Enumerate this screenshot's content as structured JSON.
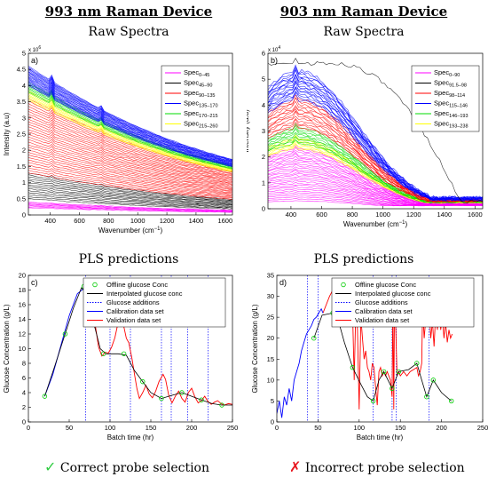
{
  "headers": {
    "left_device": "993 nm Raman Device",
    "right_device": "903 nm Raman Device",
    "raw_spectra": "Raw Spectra",
    "pls_predictions": "PLS predictions"
  },
  "footers": {
    "left": "Correct probe selection",
    "right": "Incorrect probe selection",
    "left_mark": "✓",
    "right_mark": "✗",
    "left_mark_color": "#2ecc40",
    "right_mark_color": "#e8161e"
  },
  "chart_data": [
    {
      "id": "a",
      "type": "line",
      "panel_label": "a)",
      "xlabel": "Wavenumber (cm",
      "xlabel_sup": "−1",
      "xlabel_end": ")",
      "ylabel": "Intensity (a.u)",
      "exponent_base": "x 10",
      "exponent_power": "6",
      "xlim": [
        250,
        1650
      ],
      "ylim": [
        0,
        5
      ],
      "xticks": [
        "400",
        "600",
        "800",
        "1000",
        "1200",
        "1400",
        "1600"
      ],
      "yticks": [
        "0",
        "0.5",
        "1",
        "1.5",
        "2",
        "2.5",
        "3",
        "3.5",
        "4",
        "4.5",
        "5"
      ],
      "legend": [
        {
          "base": "Spec",
          "sub": "0–45",
          "color": "#ff00ff"
        },
        {
          "base": "Spec",
          "sub": "45–90",
          "color": "#000000"
        },
        {
          "base": "Spec",
          "sub": "90–135",
          "color": "#ff0000"
        },
        {
          "base": "Spec",
          "sub": "135–170",
          "color": "#0000ff"
        },
        {
          "base": "Spec",
          "sub": "170–215",
          "color": "#00dd00"
        },
        {
          "base": "Spec",
          "sub": "215–260",
          "color": "#ffff00"
        }
      ],
      "series": [
        {
          "color": "#ff00ff",
          "count": 8,
          "start_min": 0.22,
          "start_max": 0.4
        },
        {
          "color": "#000000",
          "count": 14,
          "start_min": 0.5,
          "start_max": 1.3
        },
        {
          "color": "#ff0000",
          "count": 30,
          "start_min": 1.3,
          "start_max": 3.6
        },
        {
          "color": "#ffff00",
          "count": 8,
          "start_min": 3.55,
          "start_max": 3.85
        },
        {
          "color": "#00dd00",
          "count": 8,
          "start_min": 3.8,
          "start_max": 4.1
        },
        {
          "color": "#0000ff",
          "count": 20,
          "start_min": 4.0,
          "start_max": 4.6
        }
      ]
    },
    {
      "id": "b",
      "type": "line",
      "panel_label": "b)",
      "xlabel": "Wavenumber (cm",
      "xlabel_sup": "−1",
      "xlabel_end": ")",
      "ylabel": "Intensity (a.u)",
      "exponent_base": "x 10",
      "exponent_power": "4",
      "xlim": [
        250,
        1650
      ],
      "ylim": [
        0,
        6
      ],
      "xticks": [
        "400",
        "600",
        "800",
        "1000",
        "1200",
        "1400",
        "1600"
      ],
      "yticks": [
        "0",
        "1",
        "2",
        "3",
        "4",
        "5",
        "6"
      ],
      "legend": [
        {
          "base": "Spec",
          "sub": "0–90",
          "color": "#ff00ff"
        },
        {
          "base": "Spec",
          "sub": "91.5–98",
          "color": "#000000"
        },
        {
          "base": "Spec",
          "sub": "98–114",
          "color": "#ff0000"
        },
        {
          "base": "Spec",
          "sub": "115–146",
          "color": "#0000ff"
        },
        {
          "base": "Spec",
          "sub": "146–193",
          "color": "#00dd00"
        },
        {
          "base": "Spec",
          "sub": "193–238",
          "color": "#ffff00"
        }
      ],
      "series": [
        {
          "color": "#ff00ff",
          "count": 28,
          "peak_min": 0.3,
          "peak_max": 2.3
        },
        {
          "color": "#ffff00",
          "count": 8,
          "peak_min": 2.3,
          "peak_max": 2.7
        },
        {
          "color": "#00dd00",
          "count": 10,
          "peak_min": 2.5,
          "peak_max": 3.1
        },
        {
          "color": "#ff0000",
          "count": 14,
          "peak_min": 3.1,
          "peak_max": 4.2
        },
        {
          "color": "#0000ff",
          "count": 18,
          "peak_min": 4.2,
          "peak_max": 5.3
        },
        {
          "color": "#000000",
          "count": 1,
          "peak_min": 5.6,
          "peak_max": 5.6
        }
      ]
    },
    {
      "id": "c",
      "type": "line",
      "panel_label": "c)",
      "xlabel": "Batch time (hr)",
      "ylabel": "Glucose Concentration (g/L)",
      "xlim": [
        0,
        250
      ],
      "ylim": [
        0,
        20
      ],
      "xticks": [
        "0",
        "50",
        "100",
        "150",
        "200",
        "250"
      ],
      "yticks": [
        "0",
        "2",
        "4",
        "6",
        "8",
        "10",
        "12",
        "14",
        "16",
        "18",
        "20"
      ],
      "legend": [
        {
          "label": "Offline glucose Conc",
          "color": "#00cc00",
          "kind": "circle"
        },
        {
          "label": "Interpolated glucose conc",
          "color": "#000000",
          "kind": "line"
        },
        {
          "label": "Glucose additions",
          "color": "#0000ff",
          "kind": "dotted"
        },
        {
          "label": "Calibration data set",
          "color": "#0000ff",
          "kind": "line"
        },
        {
          "label": "Validation data set",
          "color": "#ff0000",
          "kind": "line"
        }
      ],
      "offline": [
        [
          20,
          3.5
        ],
        [
          45,
          12
        ],
        [
          68,
          18.5
        ],
        [
          92,
          9.3
        ],
        [
          117,
          9.3
        ],
        [
          140,
          5.5
        ],
        [
          163,
          3.2
        ],
        [
          188,
          4.0
        ],
        [
          212,
          3.0
        ],
        [
          237,
          2.3
        ]
      ],
      "interpolated": [
        [
          20,
          3.5
        ],
        [
          32,
          7.5
        ],
        [
          45,
          12
        ],
        [
          55,
          15.5
        ],
        [
          65,
          18.3
        ],
        [
          72,
          17.5
        ],
        [
          80,
          13.5
        ],
        [
          88,
          10.0
        ],
        [
          95,
          9.3
        ],
        [
          110,
          9.3
        ],
        [
          120,
          9.1
        ],
        [
          130,
          7.0
        ],
        [
          140,
          5.5
        ],
        [
          150,
          4.0
        ],
        [
          163,
          3.2
        ],
        [
          175,
          3.6
        ],
        [
          188,
          4.0
        ],
        [
          200,
          3.5
        ],
        [
          212,
          3.0
        ],
        [
          225,
          2.5
        ],
        [
          237,
          2.3
        ],
        [
          250,
          2.3
        ]
      ],
      "calibration": [
        [
          20,
          3.5
        ],
        [
          30,
          6.5
        ],
        [
          40,
          10.5
        ],
        [
          50,
          14.5
        ],
        [
          60,
          17.5
        ],
        [
          70,
          18.4
        ]
      ],
      "validation": [
        [
          70,
          18.4
        ],
        [
          74,
          17.8
        ],
        [
          78,
          16.2
        ],
        [
          82,
          13.2
        ],
        [
          86,
          10.2
        ],
        [
          90,
          9.0
        ],
        [
          94,
          9.5
        ],
        [
          98,
          9.4
        ],
        [
          102,
          10.2
        ],
        [
          106,
          11.5
        ],
        [
          110,
          13.6
        ],
        [
          113,
          14.6
        ],
        [
          117,
          13.0
        ],
        [
          120,
          11.4
        ],
        [
          123,
          10.8
        ],
        [
          127,
          8.6
        ],
        [
          130,
          6.5
        ],
        [
          133,
          4.5
        ],
        [
          136,
          3.2
        ],
        [
          140,
          4.0
        ],
        [
          144,
          5.0
        ],
        [
          148,
          3.8
        ],
        [
          152,
          3.3
        ],
        [
          156,
          4.2
        ],
        [
          160,
          5.5
        ],
        [
          165,
          6.5
        ],
        [
          168,
          5.8
        ],
        [
          172,
          3.6
        ],
        [
          176,
          2.6
        ],
        [
          180,
          3.5
        ],
        [
          184,
          4.2
        ],
        [
          188,
          3.2
        ],
        [
          192,
          2.7
        ],
        [
          196,
          4.0
        ],
        [
          200,
          4.6
        ],
        [
          204,
          3.4
        ],
        [
          208,
          2.6
        ],
        [
          212,
          2.9
        ],
        [
          216,
          3.5
        ],
        [
          220,
          2.8
        ],
        [
          224,
          2.4
        ],
        [
          228,
          2.7
        ],
        [
          232,
          2.9
        ],
        [
          236,
          2.5
        ],
        [
          240,
          2.3
        ],
        [
          245,
          2.5
        ],
        [
          250,
          2.4
        ]
      ],
      "additions": [
        70,
        100,
        125,
        163,
        175,
        195,
        220
      ]
    },
    {
      "id": "d",
      "type": "line",
      "panel_label": "d)",
      "xlabel": "Batch time (hr)",
      "ylabel": "Glucose Concentration (g/L)",
      "xlim": [
        0,
        250
      ],
      "ylim": [
        0,
        35
      ],
      "xticks": [
        "0",
        "50",
        "100",
        "150",
        "200",
        "250"
      ],
      "yticks": [
        "0",
        "5",
        "10",
        "15",
        "20",
        "25",
        "30",
        "35"
      ],
      "legend": [
        {
          "label": "Offline glucose Conc",
          "color": "#00cc00",
          "kind": "circle"
        },
        {
          "label": "Interpolated glucose conc",
          "color": "#000000",
          "kind": "line"
        },
        {
          "label": "Glucose additions",
          "color": "#0000ff",
          "kind": "dotted"
        },
        {
          "label": "Calibration data set",
          "color": "#0000ff",
          "kind": "line"
        },
        {
          "label": "Validation data set",
          "color": "#ff0000",
          "kind": "line"
        }
      ],
      "offline": [
        [
          45,
          20
        ],
        [
          68,
          26
        ],
        [
          92,
          13
        ],
        [
          117,
          5
        ],
        [
          130,
          12
        ],
        [
          140,
          8
        ],
        [
          148,
          12
        ],
        [
          170,
          14
        ],
        [
          182,
          6
        ],
        [
          190,
          10
        ],
        [
          212,
          5
        ]
      ],
      "interpolated": [
        [
          45,
          20
        ],
        [
          55,
          25.5
        ],
        [
          68,
          26
        ],
        [
          75,
          24
        ],
        [
          82,
          19
        ],
        [
          92,
          13
        ],
        [
          102,
          9
        ],
        [
          110,
          6
        ],
        [
          117,
          5
        ],
        [
          124,
          10
        ],
        [
          130,
          12
        ],
        [
          135,
          10
        ],
        [
          140,
          8
        ],
        [
          144,
          10
        ],
        [
          148,
          12
        ],
        [
          160,
          12.5
        ],
        [
          170,
          14
        ],
        [
          176,
          10
        ],
        [
          182,
          6
        ],
        [
          186,
          8
        ],
        [
          190,
          10
        ],
        [
          200,
          7
        ],
        [
          212,
          5
        ]
      ],
      "calibration": [
        [
          0,
          2
        ],
        [
          3,
          5
        ],
        [
          6,
          1
        ],
        [
          9,
          6
        ],
        [
          12,
          4
        ],
        [
          15,
          8
        ],
        [
          18,
          5
        ],
        [
          21,
          10
        ],
        [
          24,
          12
        ],
        [
          27,
          14
        ],
        [
          30,
          17
        ],
        [
          33,
          19
        ],
        [
          36,
          21
        ],
        [
          39,
          22
        ],
        [
          42,
          23
        ],
        [
          45,
          24.5
        ],
        [
          48,
          25
        ],
        [
          51,
          26
        ],
        [
          54,
          27
        ],
        [
          56,
          26
        ]
      ],
      "validation": [
        [
          56,
          26
        ],
        [
          60,
          28
        ],
        [
          64,
          30
        ],
        [
          68,
          31.5
        ],
        [
          72,
          30
        ],
        [
          76,
          31
        ],
        [
          80,
          29
        ],
        [
          84,
          30.5
        ],
        [
          88,
          28
        ],
        [
          92,
          26
        ],
        [
          94,
          10
        ],
        [
          96,
          28
        ],
        [
          98,
          22
        ],
        [
          100,
          3
        ],
        [
          102,
          25
        ],
        [
          104,
          20
        ],
        [
          106,
          15
        ],
        [
          108,
          17
        ],
        [
          110,
          13
        ],
        [
          112,
          12
        ],
        [
          114,
          10
        ],
        [
          116,
          14
        ],
        [
          118,
          13
        ],
        [
          120,
          8
        ],
        [
          122,
          4
        ],
        [
          124,
          12
        ],
        [
          126,
          13
        ],
        [
          128,
          11
        ],
        [
          130,
          12
        ],
        [
          132,
          11
        ],
        [
          134,
          12
        ],
        [
          136,
          11
        ],
        [
          138,
          10
        ],
        [
          140,
          6
        ],
        [
          141,
          29
        ],
        [
          142,
          3
        ],
        [
          143,
          30
        ],
        [
          144,
          26
        ],
        [
          146,
          11
        ],
        [
          148,
          12
        ],
        [
          150,
          11
        ],
        [
          154,
          12
        ],
        [
          158,
          11
        ],
        [
          162,
          12
        ],
        [
          166,
          12.5
        ],
        [
          170,
          13
        ],
        [
          172,
          11
        ],
        [
          174,
          12
        ],
        [
          176,
          14
        ],
        [
          177,
          27
        ],
        [
          179,
          20
        ],
        [
          181,
          25
        ],
        [
          183,
          23
        ],
        [
          185,
          27
        ],
        [
          187,
          20
        ],
        [
          189,
          24
        ],
        [
          191,
          18
        ],
        [
          193,
          26
        ],
        [
          195,
          22
        ],
        [
          197,
          30
        ],
        [
          199,
          22
        ],
        [
          201,
          25
        ],
        [
          203,
          20
        ],
        [
          205,
          24
        ],
        [
          207,
          19
        ],
        [
          209,
          22
        ],
        [
          211,
          20
        ],
        [
          213,
          21
        ]
      ],
      "additions": [
        37,
        50,
        117,
        140,
        145,
        185
      ]
    }
  ]
}
